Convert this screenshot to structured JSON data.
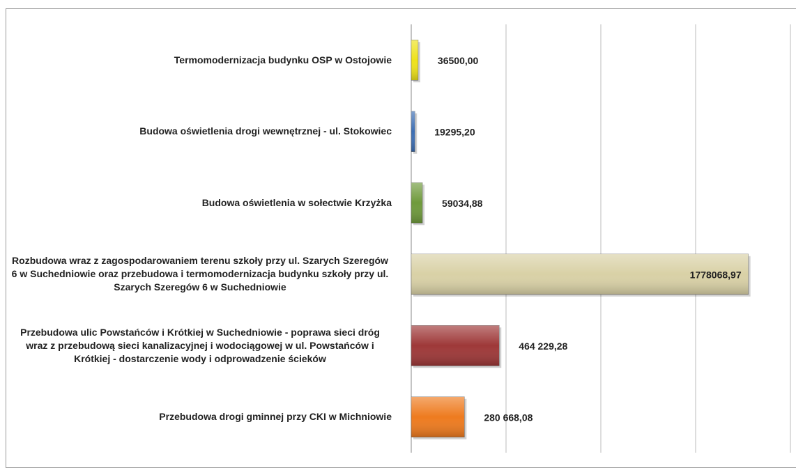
{
  "chart_data": {
    "type": "hbar",
    "categories": [
      "Termomodernizacja budynku OSP w Ostojowie",
      "Budowa oświetlenia drogi wewnętrznej - ul. Stokowiec",
      "Budowa oświetlenia w sołectwie Krzyżka",
      "Rozbudowa wraz z zagospodarowaniem terenu szkoły przy ul. Szarych Szeregów 6 w Suchedniowie oraz przebudowa i termomodernizacja budynku szkoły przy ul. Szarych Szeregów 6 w Suchedniowie",
      "Przebudowa ulic Powstańców i Krótkiej w Suchedniowie - poprawa sieci dróg wraz z przebudową sieci kanalizacyjnej i wodociągowej w ul. Powstańców i Krótkiej - dostarczenie wody i odprowadzenie ścieków",
      "Przebudowa drogi gminnej przy CKI w Michniowie"
    ],
    "values": [
      36500.0,
      19295.2,
      59034.88,
      1778068.97,
      464229.28,
      280668.08
    ],
    "value_labels": [
      "36500,00",
      "19295,20",
      "59034,88",
      "1778068,97",
      "464 229,28",
      "280 668,08"
    ],
    "colors": [
      "#eee21a",
      "#3c6eb4",
      "#6f9a3c",
      "#d9d1a6",
      "#9e3838",
      "#ee7b1f"
    ],
    "xlim": [
      0,
      2000000
    ],
    "xticks": [
      0,
      500000,
      1000000,
      1500000,
      2000000
    ],
    "grid": true
  }
}
